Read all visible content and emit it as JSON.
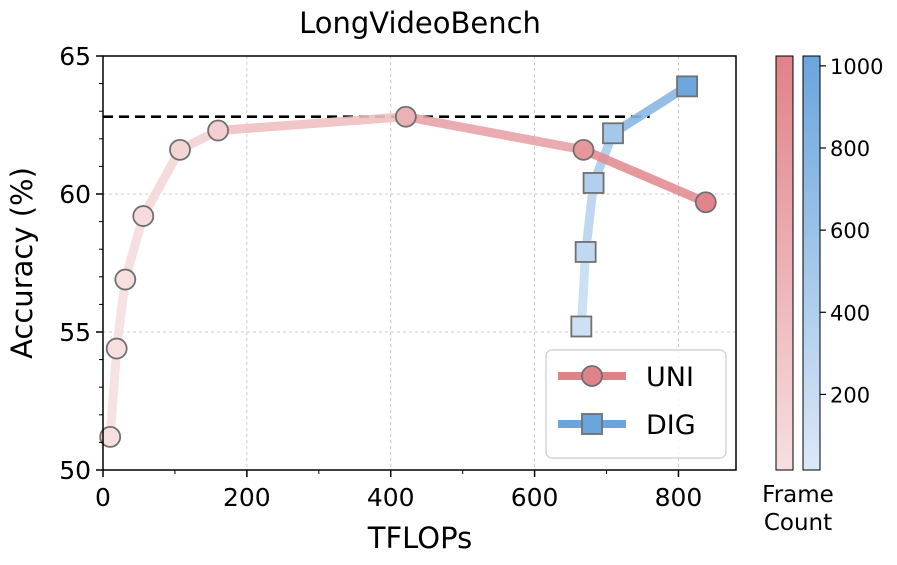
{
  "chart_data": {
    "type": "line",
    "title": "LongVideoBench",
    "xlabel": "TFLOPs",
    "ylabel": "Accuracy (%)",
    "xlim": [
      0,
      880
    ],
    "ylim": [
      50,
      65
    ],
    "x_ticks": [
      0,
      200,
      400,
      600,
      800
    ],
    "y_ticks": [
      50,
      55,
      60,
      65
    ],
    "grid": true,
    "reference_line": {
      "y": 62.8,
      "style": "dashed",
      "color": "#000000"
    },
    "series": [
      {
        "name": "UNI",
        "marker": "circle",
        "color": "#e08289",
        "points": [
          {
            "x": 10,
            "y": 51.2,
            "frames": 8
          },
          {
            "x": 19,
            "y": 54.4,
            "frames": 16
          },
          {
            "x": 31,
            "y": 56.9,
            "frames": 32
          },
          {
            "x": 56,
            "y": 59.2,
            "frames": 64
          },
          {
            "x": 107,
            "y": 61.6,
            "frames": 128
          },
          {
            "x": 160,
            "y": 62.3,
            "frames": 192
          },
          {
            "x": 421,
            "y": 62.8,
            "frames": 512
          },
          {
            "x": 668,
            "y": 61.6,
            "frames": 800
          },
          {
            "x": 838,
            "y": 59.7,
            "frames": 1000
          }
        ]
      },
      {
        "name": "DIG",
        "marker": "square",
        "color": "#6aa5dd",
        "points": [
          {
            "x": 665,
            "y": 55.2,
            "frames": 128
          },
          {
            "x": 671,
            "y": 57.9,
            "frames": 256
          },
          {
            "x": 682,
            "y": 60.4,
            "frames": 384
          },
          {
            "x": 709,
            "y": 62.2,
            "frames": 512
          },
          {
            "x": 812,
            "y": 63.9,
            "frames": 1000
          }
        ]
      }
    ],
    "legend": {
      "position": "lower-right",
      "entries": [
        "UNI",
        "DIG"
      ]
    },
    "colorbar": {
      "label_line1": "Frame",
      "label_line2": "Count",
      "range": [
        16,
        1024
      ],
      "ticks": [
        200,
        400,
        600,
        800,
        1000
      ],
      "colors": {
        "uni_low": "#f7dfe0",
        "uni_high": "#e08289",
        "dig_low": "#dbe9f7",
        "dig_high": "#6aa5dd"
      }
    }
  }
}
